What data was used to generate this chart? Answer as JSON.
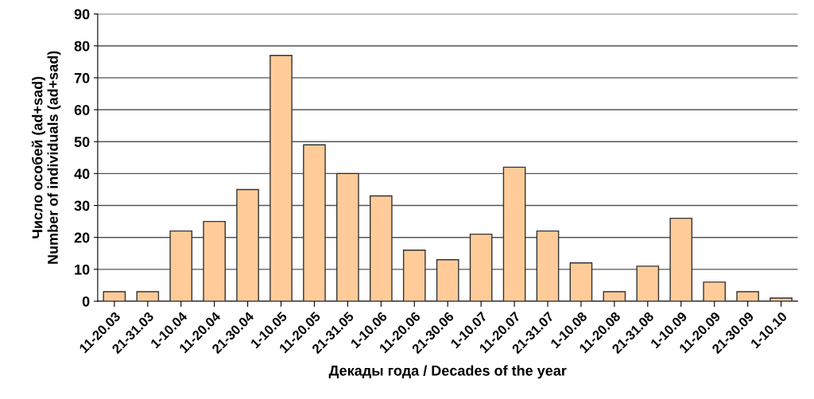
{
  "chart_data": {
    "type": "bar",
    "xlabel": "Декады года / Decades of the year",
    "ylabel": "Число особей (ad+sad)\nNumber of individuals (ad+sad)",
    "categories": [
      "11-20.03",
      "21-31.03",
      "1-10.04",
      "11-20.04",
      "21-30.04",
      "1-10.05",
      "11-20.05",
      "21-31.05",
      "1-10.06",
      "11-20.06",
      "21-30.06",
      "1-10.07",
      "11-20.07",
      "21-31.07",
      "1-10.08",
      "11-20.08",
      "21-31.08",
      "1-10.09",
      "11-20.09",
      "21-30.09",
      "1-10.10"
    ],
    "values": [
      3,
      3,
      22,
      25,
      35,
      77,
      49,
      40,
      33,
      16,
      13,
      21,
      42,
      22,
      12,
      3,
      11,
      26,
      6,
      3,
      1
    ],
    "color": "#ffcc99",
    "ylim": [
      0,
      90
    ],
    "yticks": [
      0,
      10,
      20,
      30,
      40,
      50,
      60,
      70,
      80,
      90
    ],
    "grid": "y",
    "legend": false
  }
}
